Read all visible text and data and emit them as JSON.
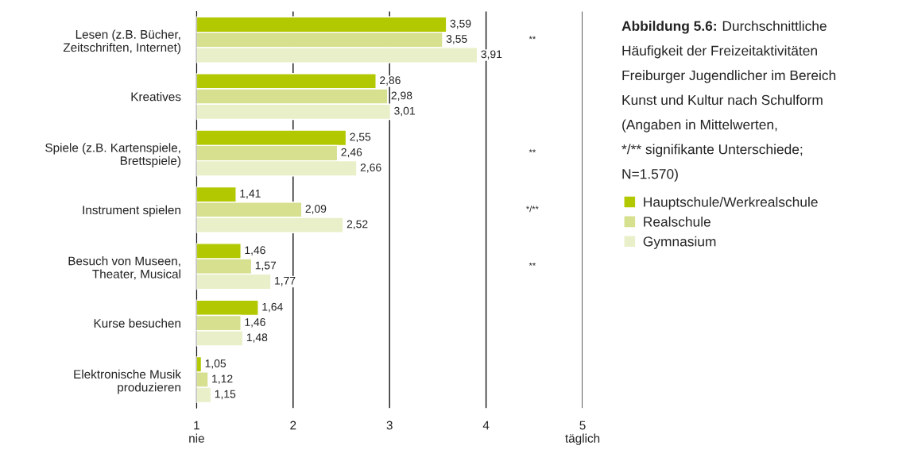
{
  "chart_data": {
    "type": "bar",
    "orientation": "horizontal",
    "title": "Abbildung 5.6:",
    "subtitle": "Durchschnittliche\nHäufigkeit der Freizeitaktivitäten\nFreiburger Jugendlicher im Bereich\nKunst und Kultur nach Schulform\n(Angaben in Mittelwerten,\n*/** signifikante Unterschiede;\nN=1.570)",
    "categories": [
      "Lesen (z.B. Bücher,\nZeitschriften, Internet)",
      "Kreatives",
      "Spiele (z.B. Kartenspiele,\nBrettspiele)",
      "Instrument spielen",
      "Besuch von Museen,\nTheater, Musical",
      "Kurse besuchen",
      "Elektronische Musik\nproduzieren"
    ],
    "series": [
      {
        "name": "Hauptschule/Werkrealschule",
        "color": "#b2c800",
        "values": [
          3.59,
          2.86,
          2.55,
          1.41,
          1.46,
          1.64,
          1.05
        ],
        "value_labels": [
          "3,59",
          "2,86",
          "2,55",
          "1,41",
          "1,46",
          "1,64",
          "1,05"
        ]
      },
      {
        "name": "Realschule",
        "color": "#d6e08f",
        "values": [
          3.55,
          2.98,
          2.46,
          2.09,
          1.57,
          1.46,
          1.12
        ],
        "value_labels": [
          "3,55",
          "2,98",
          "2,46",
          "2,09",
          "1,57",
          "1,46",
          "1,12"
        ]
      },
      {
        "name": "Gymnasium",
        "color": "#e9f0c9",
        "values": [
          3.91,
          3.01,
          2.66,
          2.52,
          1.77,
          1.48,
          1.15
        ],
        "value_labels": [
          "3,91",
          "3,01",
          "2,66",
          "2,52",
          "1,77",
          "1,48",
          "1,15"
        ]
      }
    ],
    "xlim": [
      1,
      5
    ],
    "xticks": [
      {
        "value": 1,
        "label": "1\nnie"
      },
      2,
      3,
      4,
      {
        "value": 5,
        "label": "5\ntäglich"
      }
    ],
    "grid": "x",
    "legend": "right",
    "annotations": [
      "**",
      "**",
      "*/**",
      "**"
    ]
  }
}
